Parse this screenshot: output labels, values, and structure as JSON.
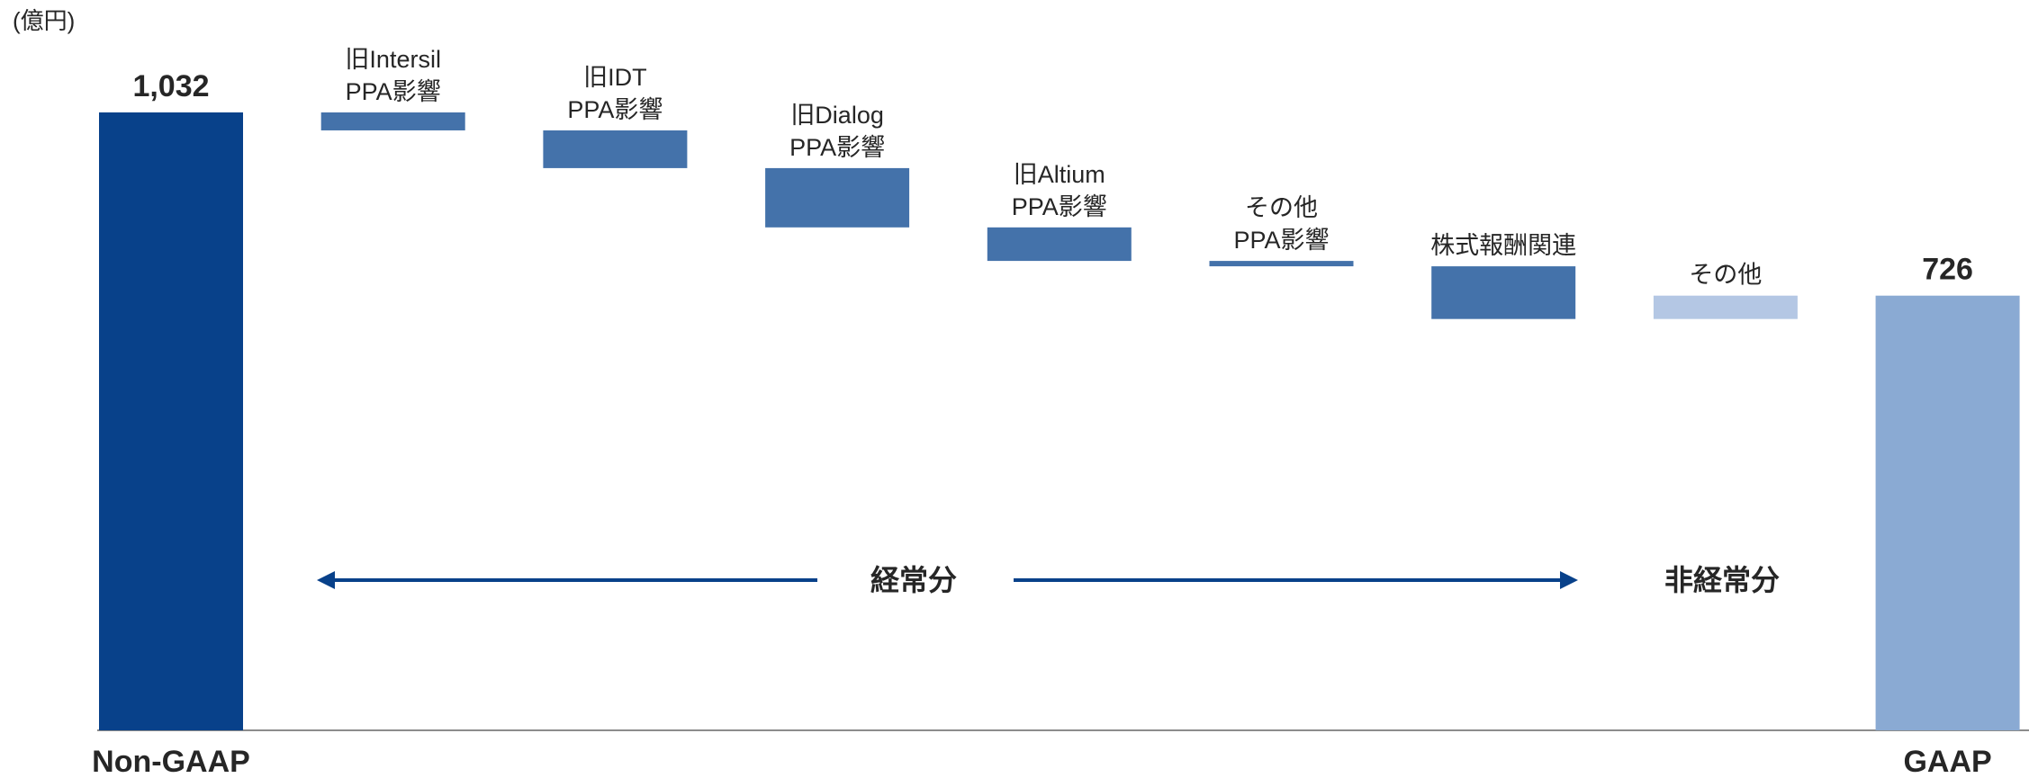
{
  "unit_label": "(億円)",
  "chart_data": {
    "type": "waterfall",
    "categories": [
      [
        "Non-GAAP"
      ],
      [
        "旧Intersil",
        "PPA影響"
      ],
      [
        "旧IDT",
        "PPA影響"
      ],
      [
        "旧Dialog",
        "PPA影響"
      ],
      [
        "旧Altium",
        "PPA影響"
      ],
      [
        "その他",
        "PPA影響"
      ],
      [
        "株式報酬関連"
      ],
      [
        "その他"
      ],
      [
        "GAAP"
      ]
    ],
    "values": [
      1032,
      -30,
      -63,
      -99,
      -56,
      -9,
      -88,
      39,
      726
    ],
    "value_labels": [
      "1,032",
      null,
      null,
      null,
      null,
      null,
      null,
      null,
      "726"
    ],
    "colors": [
      "#08418a",
      "#4472aa",
      "#4472aa",
      "#4472aa",
      "#4472aa",
      "#4472aa",
      "#4472aa",
      "#b4c7e4",
      "#8aaad3"
    ],
    "annotations": [
      "経常分",
      "非経常分"
    ]
  }
}
